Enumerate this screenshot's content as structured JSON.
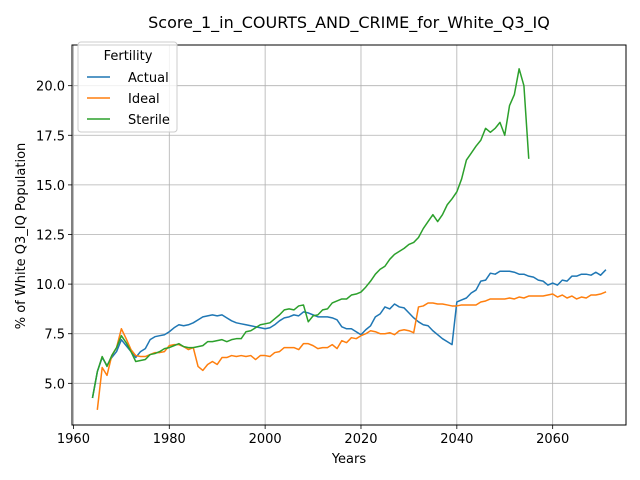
{
  "chart_data": {
    "type": "line",
    "title": "Score_1_in_COURTS_AND_CRIME_for_White_Q3_IQ",
    "xlabel": "Years",
    "ylabel": "% of White Q3_IQ Population",
    "xlim": [
      1959.7,
      2075.3
    ],
    "ylim": [
      2.9,
      22.05
    ],
    "xticks": [
      1960,
      1980,
      2000,
      2020,
      2040,
      2060
    ],
    "xtick_labels": [
      "1960",
      "1980",
      "2000",
      "2020",
      "2040",
      "2060"
    ],
    "yticks": [
      5.0,
      7.5,
      10.0,
      12.5,
      15.0,
      17.5,
      20.0
    ],
    "ytick_labels": [
      "5.0",
      "7.5",
      "10.0",
      "12.5",
      "15.0",
      "17.5",
      "20.0"
    ],
    "grid": true,
    "legend_title": "Fertility",
    "legend_position": "upper-left",
    "series": [
      {
        "name": "Actual",
        "color": "#1f77b4",
        "points": [
          [
            1964,
            4.3
          ],
          [
            1965,
            5.6
          ],
          [
            1966,
            6.3
          ],
          [
            1967,
            5.9
          ],
          [
            1968,
            6.3
          ],
          [
            1969,
            6.6
          ],
          [
            1970,
            7.2
          ],
          [
            1971,
            6.9
          ],
          [
            1972,
            6.6
          ],
          [
            1973,
            6.3
          ],
          [
            1974,
            6.6
          ],
          [
            1975,
            6.75
          ],
          [
            1976,
            7.2
          ],
          [
            1977,
            7.35
          ],
          [
            1978,
            7.4
          ],
          [
            1979,
            7.45
          ],
          [
            1980,
            7.6
          ],
          [
            1981,
            7.8
          ],
          [
            1982,
            7.95
          ],
          [
            1983,
            7.9
          ],
          [
            1984,
            7.95
          ],
          [
            1985,
            8.05
          ],
          [
            1986,
            8.2
          ],
          [
            1987,
            8.35
          ],
          [
            1988,
            8.4
          ],
          [
            1989,
            8.45
          ],
          [
            1990,
            8.4
          ],
          [
            1991,
            8.45
          ],
          [
            1992,
            8.3
          ],
          [
            1993,
            8.15
          ],
          [
            1994,
            8.05
          ],
          [
            1995,
            8.0
          ],
          [
            1996,
            7.95
          ],
          [
            1997,
            7.9
          ],
          [
            1998,
            7.85
          ],
          [
            1999,
            7.8
          ],
          [
            2000,
            7.75
          ],
          [
            2001,
            7.8
          ],
          [
            2002,
            7.95
          ],
          [
            2003,
            8.15
          ],
          [
            2004,
            8.3
          ],
          [
            2005,
            8.35
          ],
          [
            2006,
            8.45
          ],
          [
            2007,
            8.4
          ],
          [
            2008,
            8.6
          ],
          [
            2009,
            8.55
          ],
          [
            2010,
            8.45
          ],
          [
            2011,
            8.35
          ],
          [
            2012,
            8.35
          ],
          [
            2013,
            8.35
          ],
          [
            2014,
            8.3
          ],
          [
            2015,
            8.2
          ],
          [
            2016,
            7.85
          ],
          [
            2017,
            7.75
          ],
          [
            2018,
            7.75
          ],
          [
            2019,
            7.6
          ],
          [
            2020,
            7.45
          ],
          [
            2021,
            7.7
          ],
          [
            2022,
            7.9
          ],
          [
            2023,
            8.35
          ],
          [
            2024,
            8.5
          ],
          [
            2025,
            8.85
          ],
          [
            2026,
            8.75
          ],
          [
            2027,
            9.0
          ],
          [
            2028,
            8.85
          ],
          [
            2029,
            8.8
          ],
          [
            2030,
            8.55
          ],
          [
            2031,
            8.3
          ],
          [
            2032,
            8.1
          ],
          [
            2033,
            7.95
          ],
          [
            2034,
            7.9
          ],
          [
            2035,
            7.65
          ],
          [
            2036,
            7.45
          ],
          [
            2037,
            7.25
          ],
          [
            2038,
            7.1
          ],
          [
            2039,
            6.95
          ],
          [
            2040,
            9.1
          ],
          [
            2041,
            9.2
          ],
          [
            2042,
            9.3
          ],
          [
            2043,
            9.55
          ],
          [
            2044,
            9.7
          ],
          [
            2045,
            10.15
          ],
          [
            2046,
            10.2
          ],
          [
            2047,
            10.55
          ],
          [
            2048,
            10.5
          ],
          [
            2049,
            10.65
          ],
          [
            2050,
            10.65
          ],
          [
            2051,
            10.65
          ],
          [
            2052,
            10.6
          ],
          [
            2053,
            10.5
          ],
          [
            2054,
            10.5
          ],
          [
            2055,
            10.4
          ],
          [
            2056,
            10.35
          ],
          [
            2057,
            10.2
          ],
          [
            2058,
            10.15
          ],
          [
            2059,
            9.95
          ],
          [
            2060,
            10.05
          ],
          [
            2061,
            9.95
          ],
          [
            2062,
            10.2
          ],
          [
            2063,
            10.15
          ],
          [
            2064,
            10.4
          ],
          [
            2065,
            10.4
          ],
          [
            2066,
            10.5
          ],
          [
            2067,
            10.5
          ],
          [
            2068,
            10.45
          ],
          [
            2069,
            10.6
          ],
          [
            2070,
            10.45
          ],
          [
            2071,
            10.7
          ]
        ]
      },
      {
        "name": "Ideal",
        "color": "#ff7f0e",
        "points": [
          [
            1965,
            3.7
          ],
          [
            1966,
            5.8
          ],
          [
            1967,
            5.4
          ],
          [
            1968,
            6.4
          ],
          [
            1969,
            6.8
          ],
          [
            1970,
            7.75
          ],
          [
            1971,
            7.25
          ],
          [
            1972,
            6.7
          ],
          [
            1973,
            6.4
          ],
          [
            1974,
            6.35
          ],
          [
            1975,
            6.35
          ],
          [
            1976,
            6.45
          ],
          [
            1977,
            6.55
          ],
          [
            1978,
            6.55
          ],
          [
            1979,
            6.6
          ],
          [
            1980,
            6.9
          ],
          [
            1981,
            6.95
          ],
          [
            1982,
            6.95
          ],
          [
            1983,
            6.85
          ],
          [
            1984,
            6.7
          ],
          [
            1985,
            6.8
          ],
          [
            1986,
            5.85
          ],
          [
            1987,
            5.65
          ],
          [
            1988,
            5.95
          ],
          [
            1989,
            6.1
          ],
          [
            1990,
            5.95
          ],
          [
            1991,
            6.3
          ],
          [
            1992,
            6.3
          ],
          [
            1993,
            6.4
          ],
          [
            1994,
            6.35
          ],
          [
            1995,
            6.4
          ],
          [
            1996,
            6.35
          ],
          [
            1997,
            6.4
          ],
          [
            1998,
            6.2
          ],
          [
            1999,
            6.4
          ],
          [
            2000,
            6.4
          ],
          [
            2001,
            6.35
          ],
          [
            2002,
            6.55
          ],
          [
            2003,
            6.6
          ],
          [
            2004,
            6.8
          ],
          [
            2005,
            6.8
          ],
          [
            2006,
            6.8
          ],
          [
            2007,
            6.7
          ],
          [
            2008,
            7.0
          ],
          [
            2009,
            7.0
          ],
          [
            2010,
            6.9
          ],
          [
            2011,
            6.75
          ],
          [
            2012,
            6.8
          ],
          [
            2013,
            6.8
          ],
          [
            2014,
            6.95
          ],
          [
            2015,
            6.75
          ],
          [
            2016,
            7.15
          ],
          [
            2017,
            7.05
          ],
          [
            2018,
            7.3
          ],
          [
            2019,
            7.25
          ],
          [
            2020,
            7.4
          ],
          [
            2021,
            7.5
          ],
          [
            2022,
            7.65
          ],
          [
            2023,
            7.6
          ],
          [
            2024,
            7.5
          ],
          [
            2025,
            7.5
          ],
          [
            2026,
            7.55
          ],
          [
            2027,
            7.45
          ],
          [
            2028,
            7.65
          ],
          [
            2029,
            7.7
          ],
          [
            2030,
            7.65
          ],
          [
            2031,
            7.55
          ],
          [
            2032,
            8.85
          ],
          [
            2033,
            8.9
          ],
          [
            2034,
            9.05
          ],
          [
            2035,
            9.05
          ],
          [
            2036,
            9.0
          ],
          [
            2037,
            9.0
          ],
          [
            2038,
            8.95
          ],
          [
            2039,
            8.9
          ],
          [
            2040,
            8.9
          ],
          [
            2041,
            8.95
          ],
          [
            2042,
            8.95
          ],
          [
            2043,
            8.95
          ],
          [
            2044,
            8.95
          ],
          [
            2045,
            9.1
          ],
          [
            2046,
            9.15
          ],
          [
            2047,
            9.25
          ],
          [
            2048,
            9.25
          ],
          [
            2049,
            9.25
          ],
          [
            2050,
            9.25
          ],
          [
            2051,
            9.3
          ],
          [
            2052,
            9.25
          ],
          [
            2053,
            9.35
          ],
          [
            2054,
            9.3
          ],
          [
            2055,
            9.4
          ],
          [
            2056,
            9.4
          ],
          [
            2057,
            9.4
          ],
          [
            2058,
            9.4
          ],
          [
            2059,
            9.45
          ],
          [
            2060,
            9.5
          ],
          [
            2061,
            9.35
          ],
          [
            2062,
            9.45
          ],
          [
            2063,
            9.3
          ],
          [
            2064,
            9.4
          ],
          [
            2065,
            9.25
          ],
          [
            2066,
            9.35
          ],
          [
            2067,
            9.3
          ],
          [
            2068,
            9.45
          ],
          [
            2069,
            9.45
          ],
          [
            2070,
            9.5
          ],
          [
            2071,
            9.6
          ]
        ]
      },
      {
        "name": "Sterile",
        "color": "#2ca02c",
        "points": [
          [
            1964,
            4.3
          ],
          [
            1965,
            5.6
          ],
          [
            1966,
            6.35
          ],
          [
            1967,
            5.85
          ],
          [
            1968,
            6.4
          ],
          [
            1969,
            6.8
          ],
          [
            1970,
            7.4
          ],
          [
            1971,
            7.05
          ],
          [
            1972,
            6.6
          ],
          [
            1973,
            6.1
          ],
          [
            1974,
            6.15
          ],
          [
            1975,
            6.2
          ],
          [
            1976,
            6.45
          ],
          [
            1977,
            6.5
          ],
          [
            1978,
            6.6
          ],
          [
            1979,
            6.75
          ],
          [
            1980,
            6.8
          ],
          [
            1981,
            6.9
          ],
          [
            1982,
            7.0
          ],
          [
            1983,
            6.85
          ],
          [
            1984,
            6.8
          ],
          [
            1985,
            6.8
          ],
          [
            1986,
            6.85
          ],
          [
            1987,
            6.9
          ],
          [
            1988,
            7.1
          ],
          [
            1989,
            7.1
          ],
          [
            1990,
            7.15
          ],
          [
            1991,
            7.2
          ],
          [
            1992,
            7.1
          ],
          [
            1993,
            7.2
          ],
          [
            1994,
            7.25
          ],
          [
            1995,
            7.25
          ],
          [
            1996,
            7.6
          ],
          [
            1997,
            7.65
          ],
          [
            1998,
            7.8
          ],
          [
            1999,
            7.95
          ],
          [
            2000,
            8.0
          ],
          [
            2001,
            8.05
          ],
          [
            2002,
            8.25
          ],
          [
            2003,
            8.45
          ],
          [
            2004,
            8.7
          ],
          [
            2005,
            8.75
          ],
          [
            2006,
            8.7
          ],
          [
            2007,
            8.9
          ],
          [
            2008,
            8.95
          ],
          [
            2009,
            8.1
          ],
          [
            2010,
            8.4
          ],
          [
            2011,
            8.45
          ],
          [
            2012,
            8.7
          ],
          [
            2013,
            8.75
          ],
          [
            2014,
            9.05
          ],
          [
            2015,
            9.15
          ],
          [
            2016,
            9.25
          ],
          [
            2017,
            9.25
          ],
          [
            2018,
            9.45
          ],
          [
            2019,
            9.5
          ],
          [
            2020,
            9.6
          ],
          [
            2021,
            9.85
          ],
          [
            2022,
            10.15
          ],
          [
            2023,
            10.5
          ],
          [
            2024,
            10.75
          ],
          [
            2025,
            10.9
          ],
          [
            2026,
            11.25
          ],
          [
            2027,
            11.5
          ],
          [
            2028,
            11.65
          ],
          [
            2029,
            11.8
          ],
          [
            2030,
            12.0
          ],
          [
            2031,
            12.1
          ],
          [
            2032,
            12.35
          ],
          [
            2033,
            12.8
          ],
          [
            2034,
            13.15
          ],
          [
            2035,
            13.5
          ],
          [
            2036,
            13.15
          ],
          [
            2037,
            13.5
          ],
          [
            2038,
            14.0
          ],
          [
            2039,
            14.3
          ],
          [
            2040,
            14.65
          ],
          [
            2041,
            15.3
          ],
          [
            2042,
            16.25
          ],
          [
            2043,
            16.6
          ],
          [
            2044,
            16.95
          ],
          [
            2045,
            17.25
          ],
          [
            2046,
            17.85
          ],
          [
            2047,
            17.65
          ],
          [
            2048,
            17.85
          ],
          [
            2049,
            18.15
          ],
          [
            2050,
            17.5
          ],
          [
            2051,
            19.0
          ],
          [
            2052,
            19.55
          ],
          [
            2053,
            20.85
          ],
          [
            2054,
            20.0
          ],
          [
            2055,
            16.35
          ]
        ]
      }
    ]
  }
}
